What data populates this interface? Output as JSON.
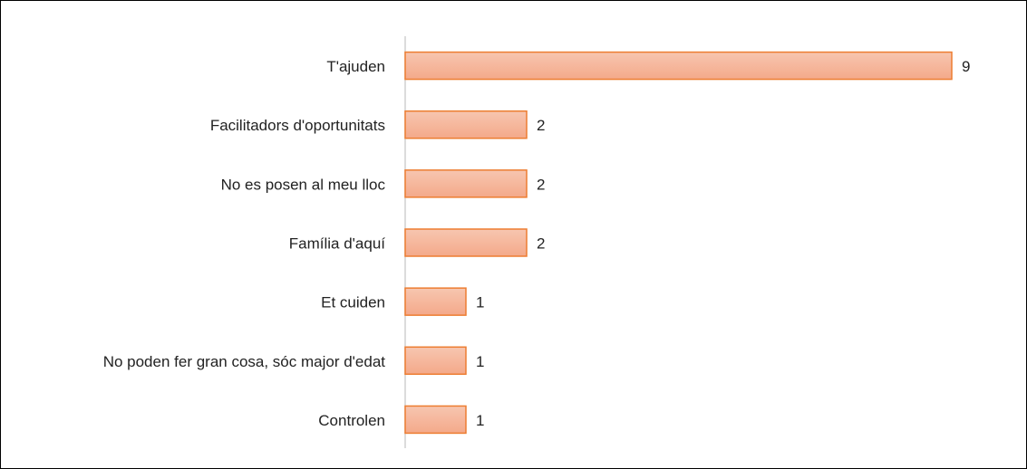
{
  "chart_data": {
    "type": "bar",
    "orientation": "horizontal",
    "categories": [
      "T'ajuden",
      "Facilitadors d'oportunitats",
      "No es posen al meu lloc",
      "Família d'aquí",
      "Et cuiden",
      "No poden fer gran cosa, sóc major d'edat",
      "Controlen"
    ],
    "values": [
      9,
      2,
      2,
      2,
      1,
      1,
      1
    ],
    "color": "#ed7d31",
    "xlim": [
      0,
      9
    ]
  }
}
